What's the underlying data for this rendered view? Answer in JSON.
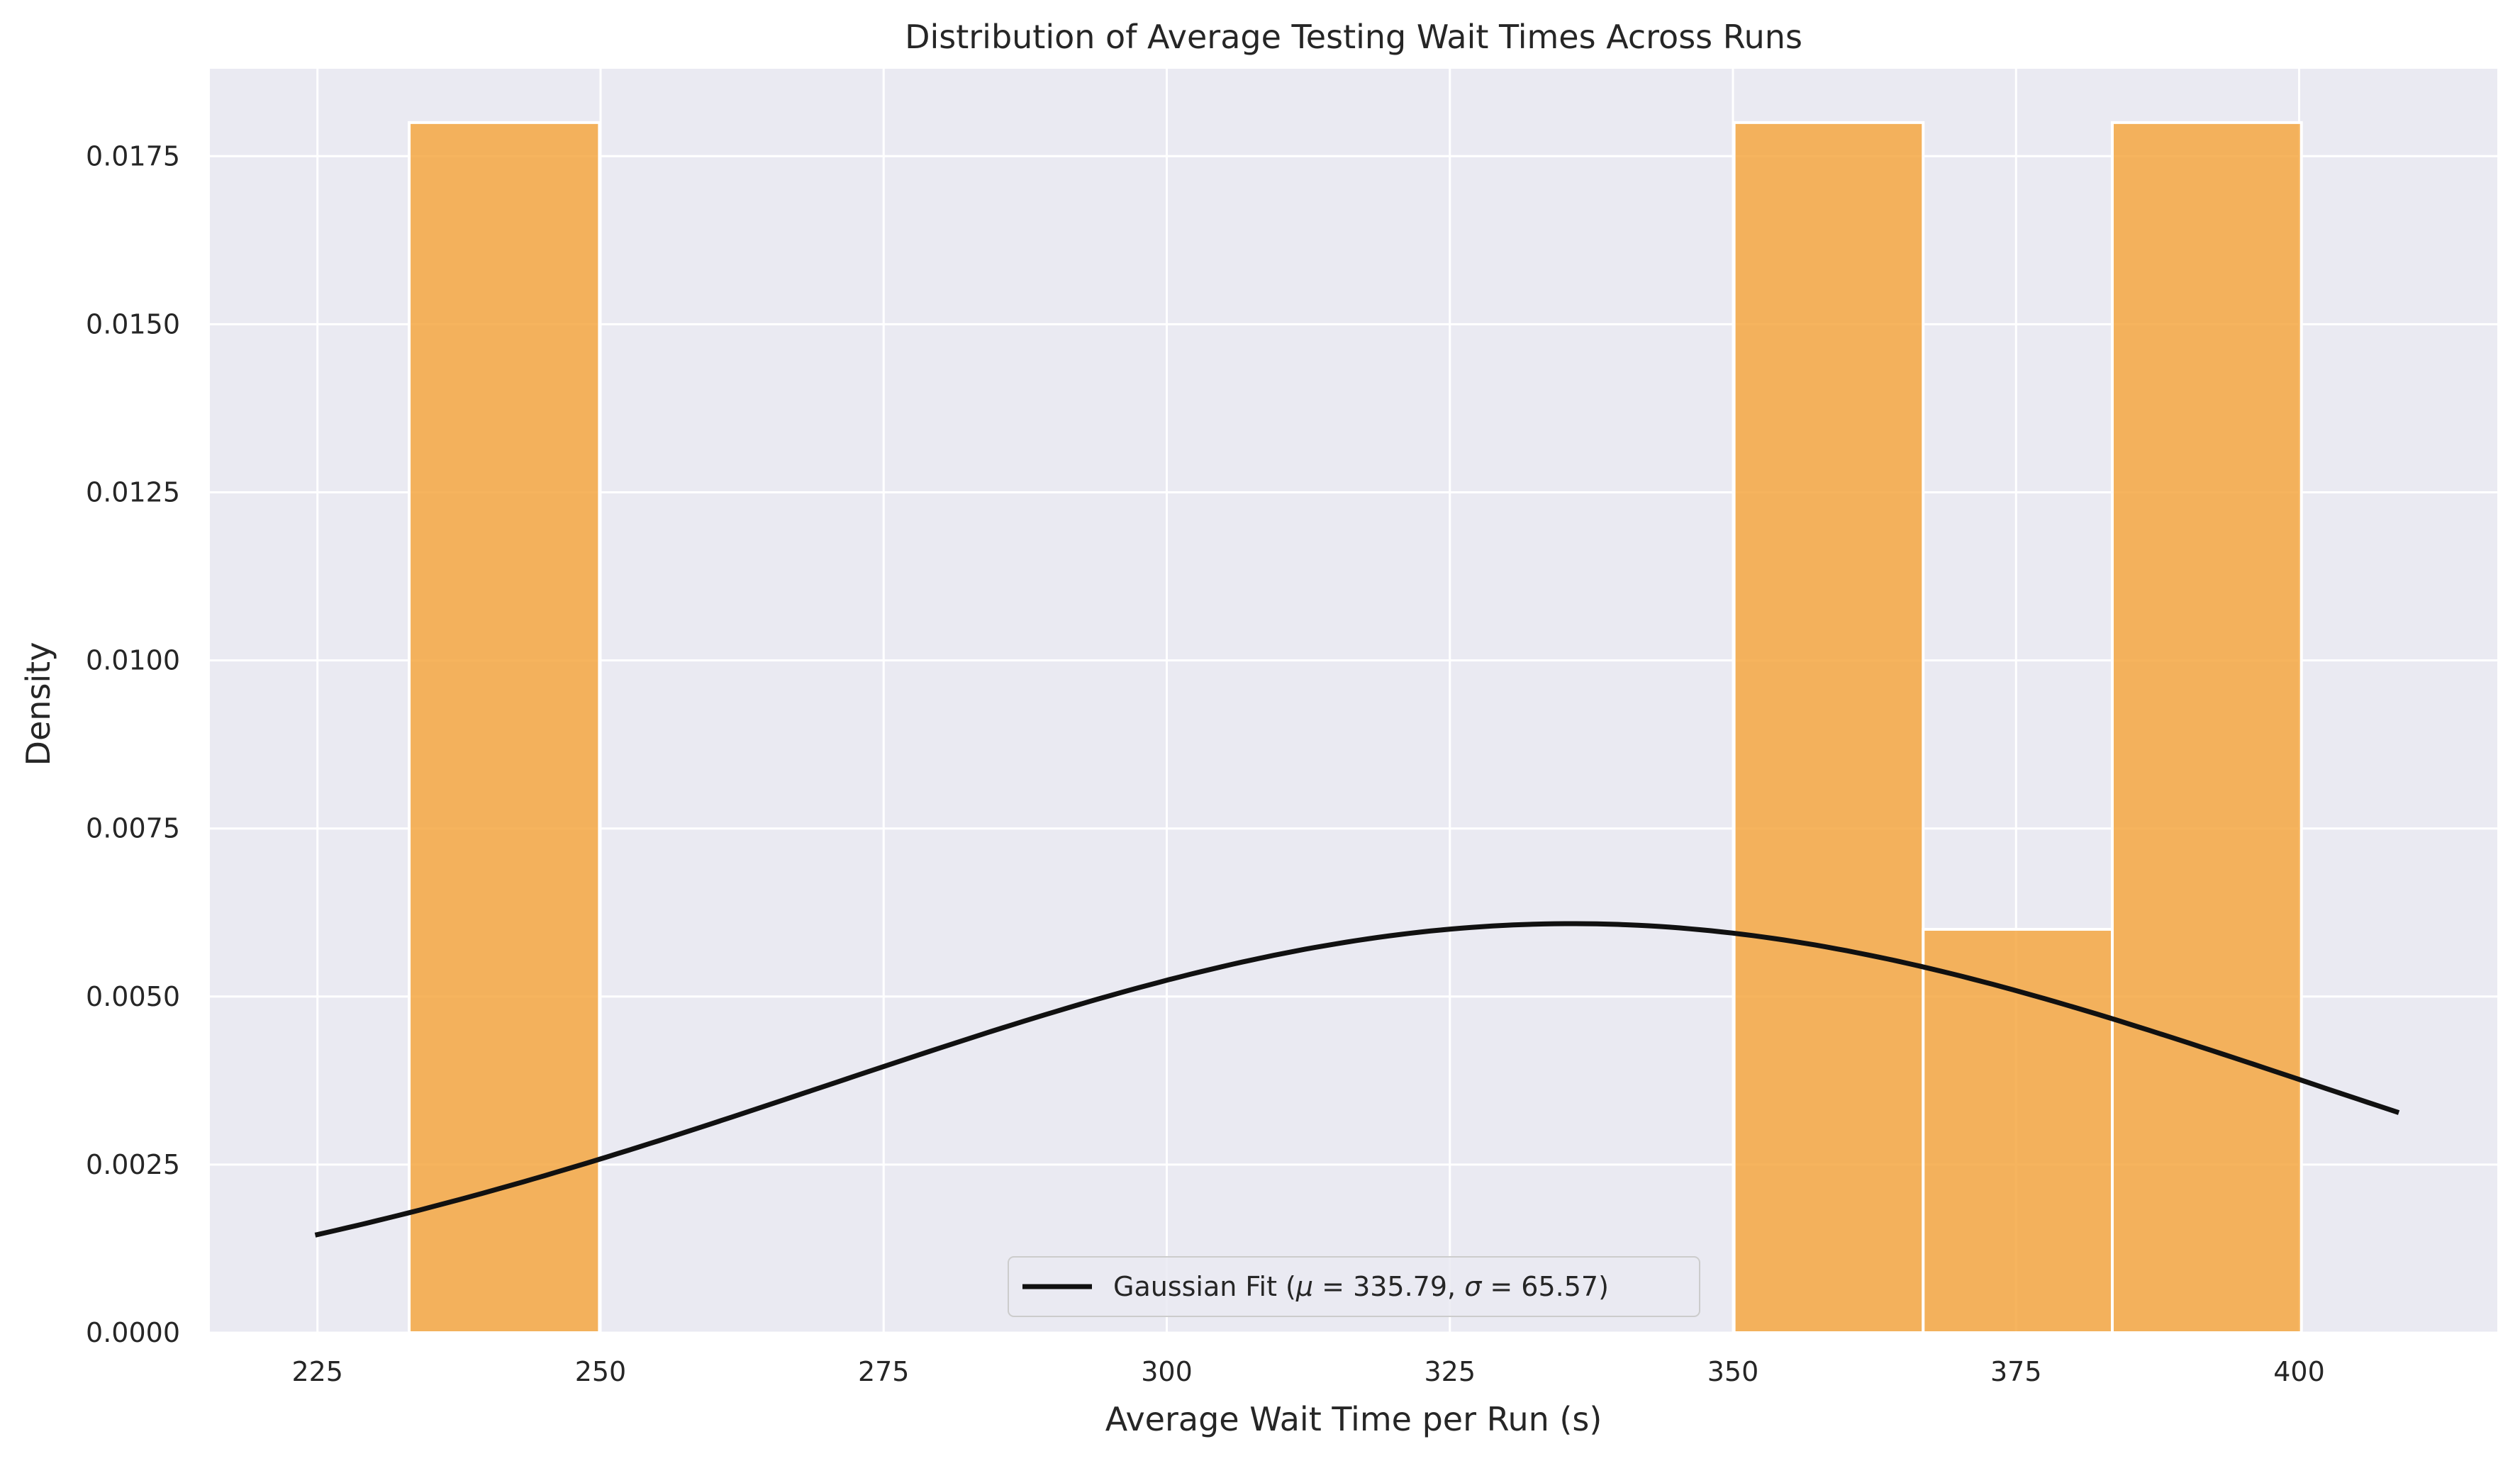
{
  "chart_data": {
    "type": "bar",
    "title": "Distribution of Average Testing Wait Times Across Runs",
    "xlabel": "Average Wait Time per Run (s)",
    "ylabel": "Density",
    "xlim": [
      215.5,
      417.5
    ],
    "ylim": [
      0,
      0.0188
    ],
    "x_ticks": [
      "225",
      "250",
      "275",
      "300",
      "325",
      "350",
      "375",
      "400"
    ],
    "x_tick_values": [
      225,
      250,
      275,
      300,
      325,
      350,
      375,
      400
    ],
    "y_ticks": [
      "0.0000",
      "0.0025",
      "0.0050",
      "0.0075",
      "0.0100",
      "0.0125",
      "0.0150",
      "0.0175"
    ],
    "y_tick_values": [
      0,
      0.0025,
      0.005,
      0.0075,
      0.01,
      0.0125,
      0.015,
      0.0175
    ],
    "grid": true,
    "histogram": {
      "color": "#f5a742",
      "bins": [
        {
          "x0": 233.1,
          "x1": 249.9,
          "density": 0.018
        },
        {
          "x0": 249.9,
          "x1": 266.6,
          "density": 0
        },
        {
          "x0": 266.6,
          "x1": 283.3,
          "density": 0
        },
        {
          "x0": 283.3,
          "x1": 300.0,
          "density": 0
        },
        {
          "x0": 300.0,
          "x1": 316.7,
          "density": 0
        },
        {
          "x0": 316.7,
          "x1": 333.4,
          "density": 0
        },
        {
          "x0": 333.4,
          "x1": 350.1,
          "density": 0
        },
        {
          "x0": 350.1,
          "x1": 366.8,
          "density": 0.018
        },
        {
          "x0": 366.8,
          "x1": 383.5,
          "density": 0.006
        },
        {
          "x0": 383.5,
          "x1": 400.2,
          "density": 0.018
        }
      ]
    },
    "series": [
      {
        "name": "Gaussian Fit (μ = 335.79, σ = 65.57)",
        "type": "line",
        "color": "#111111",
        "mu": 335.79,
        "sigma": 65.57,
        "x_range": [
          224.8,
          408.8
        ]
      }
    ],
    "legend": {
      "placement": "lower center",
      "prefix": "Gaussian Fit (",
      "mu_symbol": "μ",
      "eq": " = ",
      "mu_value": "335.79",
      "sep": ", ",
      "sigma_symbol": "σ",
      "sigma_value": "65.57",
      "suffix": ")"
    },
    "colors": {
      "plot_background": "#eaeaf2",
      "grid": "#ffffff",
      "bar": "#f5a742",
      "line": "#111111"
    }
  }
}
